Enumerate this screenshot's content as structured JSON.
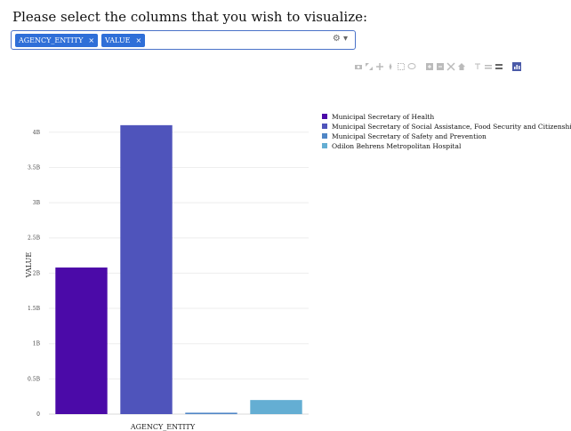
{
  "prompt": "Please select the columns that you wish to visualize:",
  "selector": {
    "chips": [
      "AGENCY_ENTITY",
      "VALUE"
    ],
    "remove_glyph": "×",
    "tools_glyph": "⚙ ▾"
  },
  "modebar_icons": [
    "camera-icon",
    "zoom-icon",
    "pan-icon",
    "box-select-icon",
    "lasso-icon",
    "zoom-in-icon",
    "zoom-out-icon",
    "autoscale-icon",
    "reset-axes-icon",
    "spike-lines-icon",
    "hover-closest-icon",
    "hover-compare-icon",
    "plotly-logo-icon"
  ],
  "chart_data": {
    "type": "bar",
    "categories": [
      "Municipal Secretary of Health",
      "Municipal Secretary of Social Assistance, Food Security and Citizenship",
      "Municipal Secretary of Safety and Prevention",
      "Odilon Behrens Metropolitan Hospital"
    ],
    "values": [
      2080000000,
      4100000000,
      20000000,
      200000000
    ],
    "colors": [
      "#4b0aa8",
      "#4f54bb",
      "#4f86c6",
      "#64aed3"
    ],
    "xlabel": "AGENCY_ENTITY",
    "ylabel": "VALUE",
    "ylim": [
      0,
      4300000000
    ],
    "yticks": [
      0,
      500000000,
      1000000000,
      1500000000,
      2000000000,
      2500000000,
      3000000000,
      3500000000,
      4000000000
    ],
    "ytick_labels": [
      "0",
      "0.5B",
      "1B",
      "1.5B",
      "2B",
      "2.5B",
      "3B",
      "3.5B",
      "4B"
    ],
    "grid": true,
    "legend_position": "top-right"
  }
}
